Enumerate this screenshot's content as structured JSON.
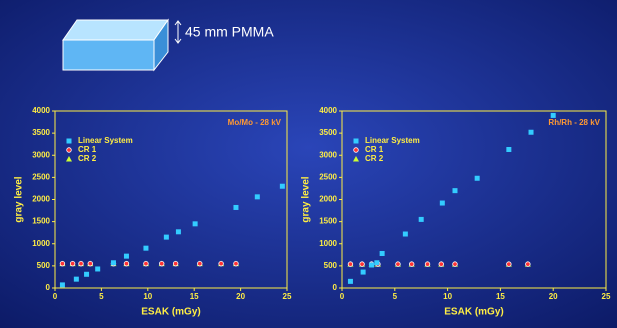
{
  "header": {
    "label": "45 mm PMMA"
  },
  "chart_data": [
    {
      "type": "scatter",
      "annotation": "Mo/Mo - 28 kV",
      "x_label": "ESAK (mGy)",
      "y_label": "gray level",
      "xlim": [
        0,
        25
      ],
      "xticks": [
        0,
        5,
        10,
        15,
        20,
        25
      ],
      "ylim": [
        0,
        4000
      ],
      "yticks": [
        0,
        500,
        1000,
        1500,
        2000,
        2500,
        3000,
        3500,
        4000
      ],
      "legend": "upper left",
      "series": [
        {
          "name": "Linear System",
          "color": "#33ccff",
          "marker": "square",
          "x": [
            0.8,
            2.3,
            3.4,
            4.6,
            6.3,
            7.7,
            9.8,
            12,
            13.3,
            15.1,
            19.5,
            21.8,
            24.5
          ],
          "values": [
            70,
            200,
            310,
            430,
            570,
            720,
            900,
            1150,
            1270,
            1450,
            1820,
            2060,
            2300
          ]
        },
        {
          "name": "CR 1",
          "color": "#ff3333",
          "marker": "circle",
          "x": [
            0.8,
            1.9,
            2.8,
            3.8,
            6.3,
            7.7,
            9.8,
            11.5,
            13,
            15.6,
            17.9,
            19.5
          ],
          "values": [
            550,
            550,
            550,
            550,
            550,
            550,
            550,
            550,
            550,
            550,
            550,
            550
          ]
        },
        {
          "name": "CR 2",
          "color": "#ccff33",
          "marker": "triangle",
          "x": [
            0.8,
            1.9,
            2.8,
            3.8,
            6.3,
            7.7,
            9.8,
            11.5,
            13,
            15.6,
            17.9,
            19.5
          ],
          "values": [
            550,
            550,
            550,
            550,
            550,
            550,
            550,
            550,
            550,
            550,
            550,
            550
          ]
        }
      ]
    },
    {
      "type": "scatter",
      "annotation": "Rh/Rh - 28 kV",
      "x_label": "ESAK (mGy)",
      "y_label": "gray level",
      "xlim": [
        0,
        25
      ],
      "xticks": [
        0,
        5,
        10,
        15,
        20,
        25
      ],
      "ylim": [
        0,
        4000
      ],
      "yticks": [
        0,
        500,
        1000,
        1500,
        2000,
        2500,
        3000,
        3500,
        4000
      ],
      "legend": "upper left",
      "series": [
        {
          "name": "Linear System",
          "color": "#33ccff",
          "marker": "square",
          "x": [
            0.8,
            2,
            2.8,
            3.3,
            3.8,
            6,
            7.5,
            9.5,
            10.7,
            12.8,
            15.8,
            17.9,
            20
          ],
          "values": [
            150,
            360,
            520,
            570,
            780,
            1220,
            1550,
            1920,
            2200,
            2480,
            3130,
            3520,
            3900
          ]
        },
        {
          "name": "CR 1",
          "color": "#ff3333",
          "marker": "circle",
          "x": [
            0.8,
            1.9,
            2.8,
            3.4,
            5.3,
            6.6,
            8.1,
            9.4,
            10.7,
            15.8,
            17.6
          ],
          "values": [
            540,
            540,
            540,
            540,
            540,
            540,
            540,
            540,
            540,
            540,
            540
          ]
        },
        {
          "name": "CR 2",
          "color": "#ccff33",
          "marker": "triangle",
          "x": [
            0.8,
            1.9,
            2.8,
            3.4,
            5.3,
            6.6,
            8.1,
            9.4,
            10.7,
            15.8,
            17.6
          ],
          "values": [
            540,
            540,
            540,
            540,
            540,
            540,
            540,
            540,
            540,
            540,
            540
          ]
        }
      ]
    }
  ]
}
